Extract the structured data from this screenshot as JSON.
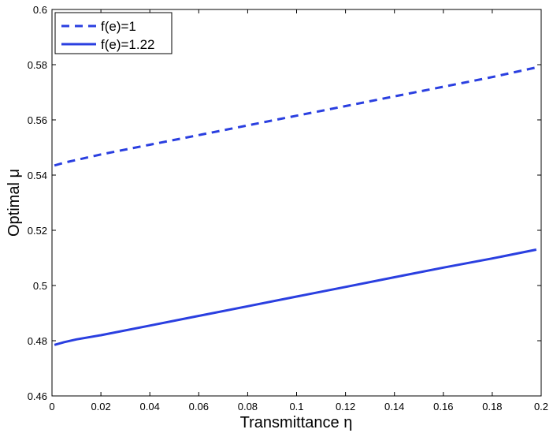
{
  "chart_data": {
    "type": "line",
    "title": "",
    "xlabel": "Transmittance η",
    "ylabel": "Optimal μ",
    "xlim": [
      0,
      0.2
    ],
    "ylim": [
      0.46,
      0.6
    ],
    "xticks": [
      0,
      0.02,
      0.04,
      0.06,
      0.08,
      0.1,
      0.12,
      0.14,
      0.16,
      0.18,
      0.2
    ],
    "xtick_labels": [
      "0",
      "0.02",
      "0.04",
      "0.06",
      "0.08",
      "0.1",
      "0.12",
      "0.14",
      "0.16",
      "0.18",
      "0.2"
    ],
    "yticks": [
      0.46,
      0.48,
      0.5,
      0.52,
      0.54,
      0.56,
      0.58,
      0.6
    ],
    "ytick_labels": [
      "0.46",
      "0.48",
      "0.5",
      "0.52",
      "0.54",
      "0.56",
      "0.58",
      "0.6"
    ],
    "grid": false,
    "legend_position": "top-left",
    "series": [
      {
        "name": "f(e)=1",
        "style": "dashed",
        "color": "#2a3fe0",
        "x": [
          0.001,
          0.005,
          0.01,
          0.02,
          0.04,
          0.06,
          0.08,
          0.1,
          0.12,
          0.14,
          0.16,
          0.18,
          0.198
        ],
        "y": [
          0.5435,
          0.5445,
          0.5455,
          0.5475,
          0.551,
          0.5545,
          0.558,
          0.5615,
          0.565,
          0.5685,
          0.572,
          0.5755,
          0.579
        ]
      },
      {
        "name": "f(e)=1.22",
        "style": "solid",
        "color": "#2a3fe0",
        "x": [
          0.001,
          0.005,
          0.01,
          0.02,
          0.04,
          0.06,
          0.08,
          0.1,
          0.12,
          0.14,
          0.16,
          0.18,
          0.198
        ],
        "y": [
          0.4785,
          0.4795,
          0.4805,
          0.482,
          0.4855,
          0.489,
          0.4925,
          0.496,
          0.4995,
          0.503,
          0.5065,
          0.5098,
          0.513
        ]
      }
    ]
  }
}
